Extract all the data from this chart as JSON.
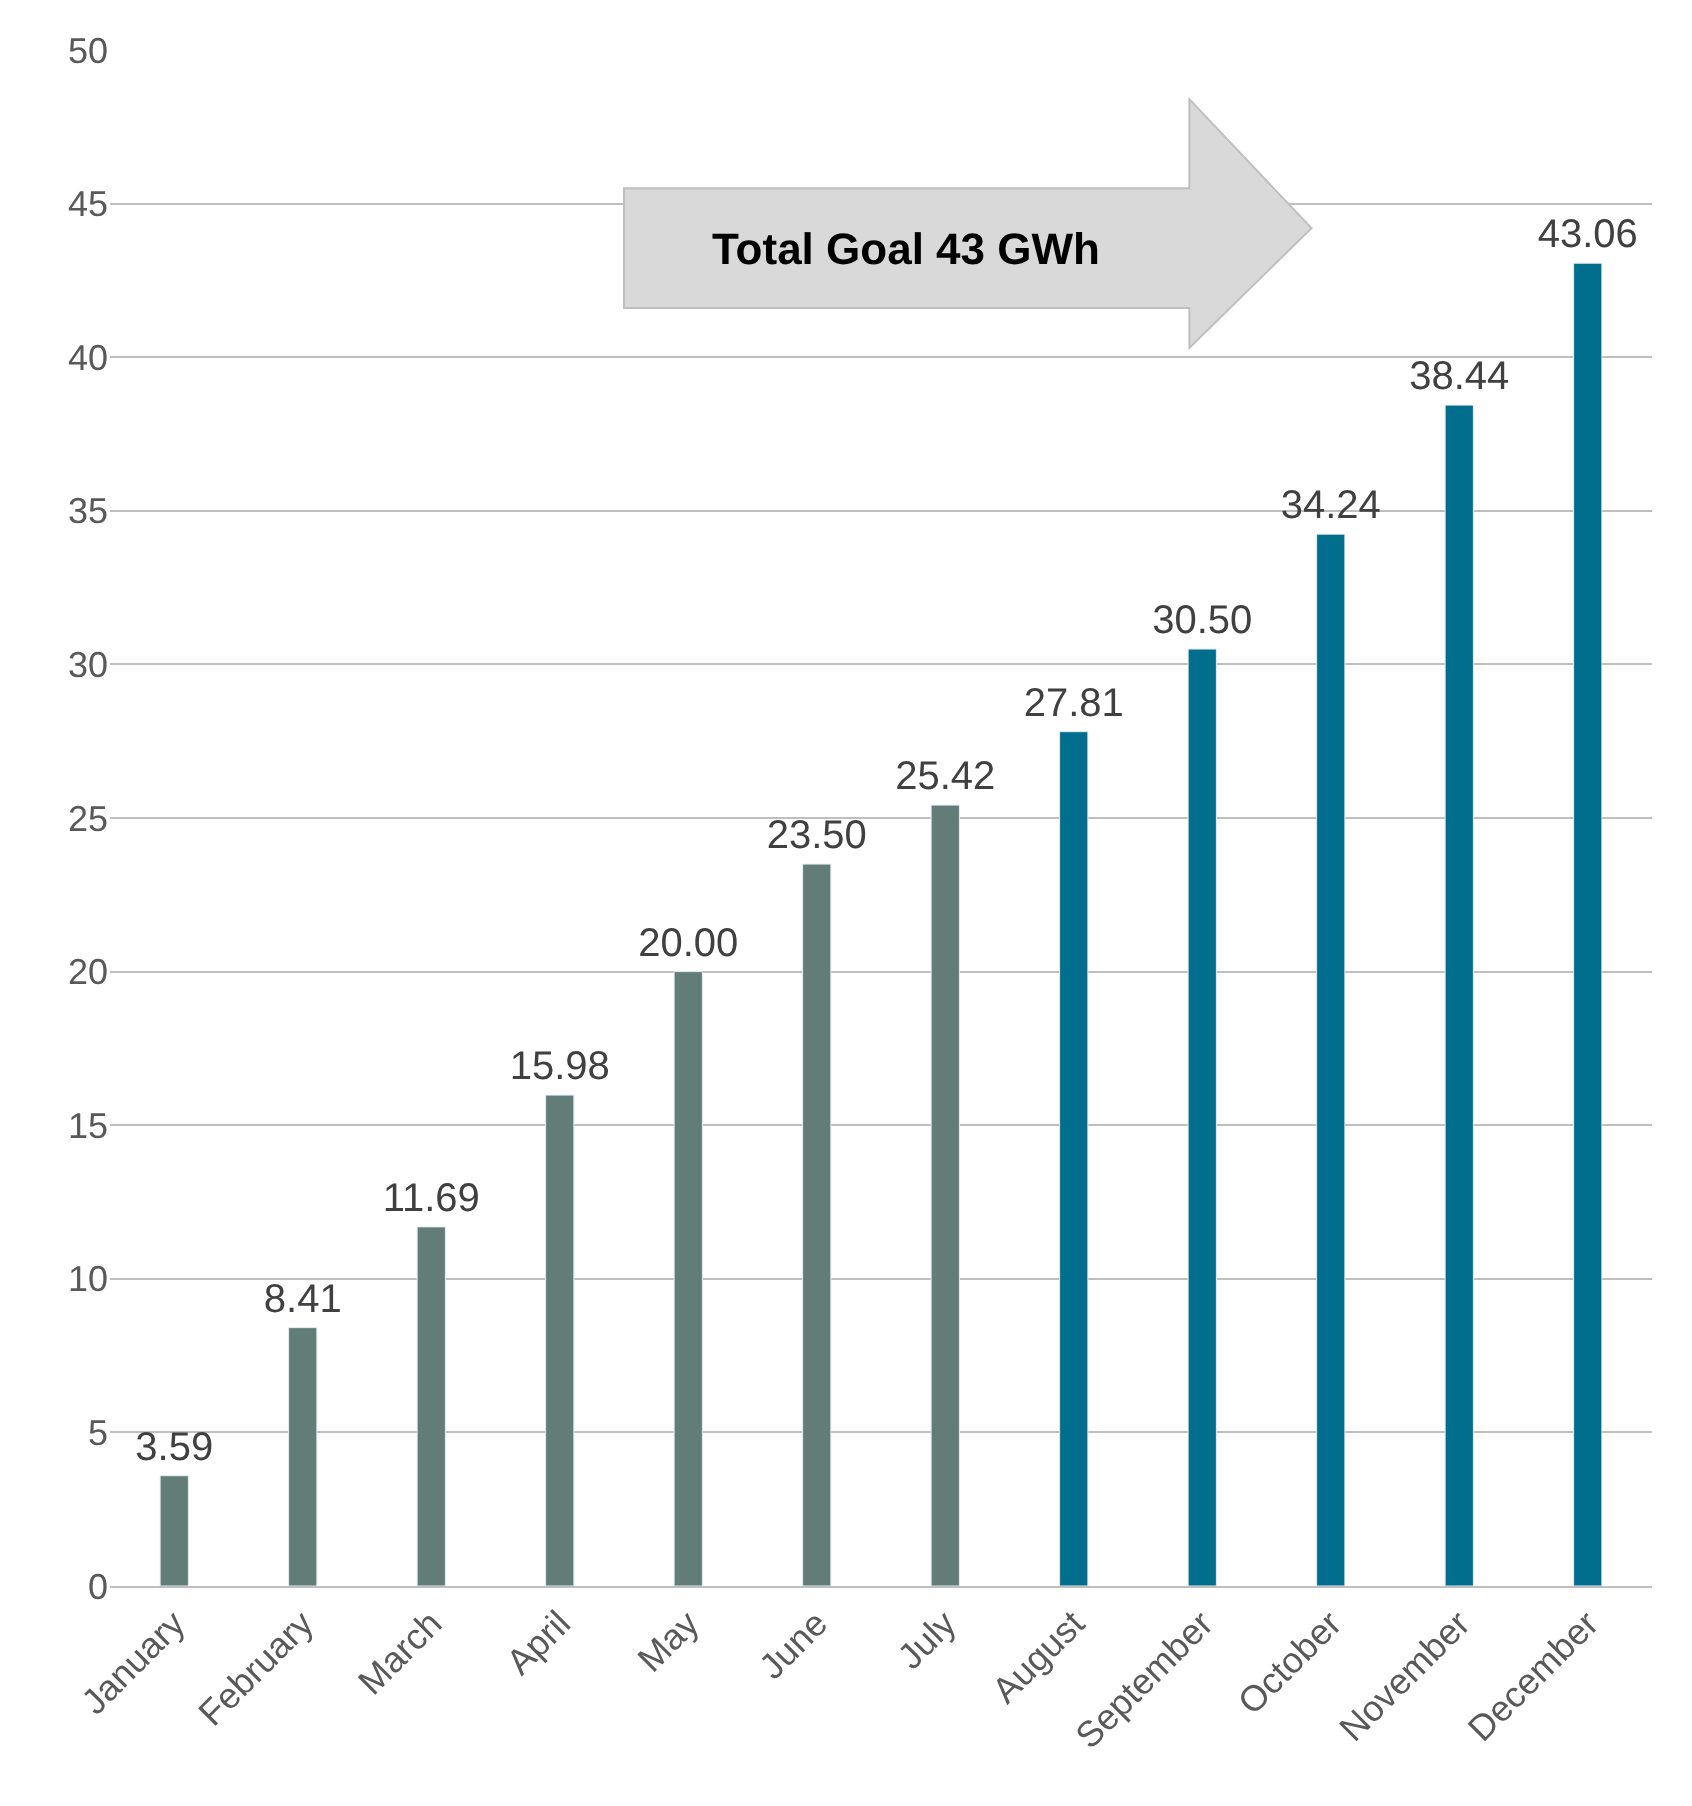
{
  "chart_data": {
    "type": "bar",
    "categories": [
      "January",
      "February",
      "March",
      "April",
      "May",
      "June",
      "July",
      "August",
      "September",
      "October",
      "November",
      "December"
    ],
    "values": [
      3.59,
      8.41,
      11.69,
      15.98,
      20.0,
      23.5,
      25.42,
      27.81,
      30.5,
      34.24,
      38.44,
      43.06
    ],
    "value_labels": [
      "3.59",
      "8.41",
      "11.69",
      "15.98",
      "20.00",
      "23.50",
      "25.42",
      "27.81",
      "30.50",
      "34.24",
      "38.44",
      "43.06"
    ],
    "colors": [
      "#627d77",
      "#627d77",
      "#627d77",
      "#627d77",
      "#627d77",
      "#627d77",
      "#627d77",
      "#006e8c",
      "#006e8c",
      "#006e8c",
      "#006e8c",
      "#006e8c"
    ],
    "ylim": [
      0,
      50
    ],
    "yticks": [
      0,
      5,
      10,
      15,
      20,
      25,
      30,
      35,
      40,
      45,
      50
    ],
    "grid": "y",
    "annotations": [
      "Total Goal 43 GWh"
    ]
  }
}
